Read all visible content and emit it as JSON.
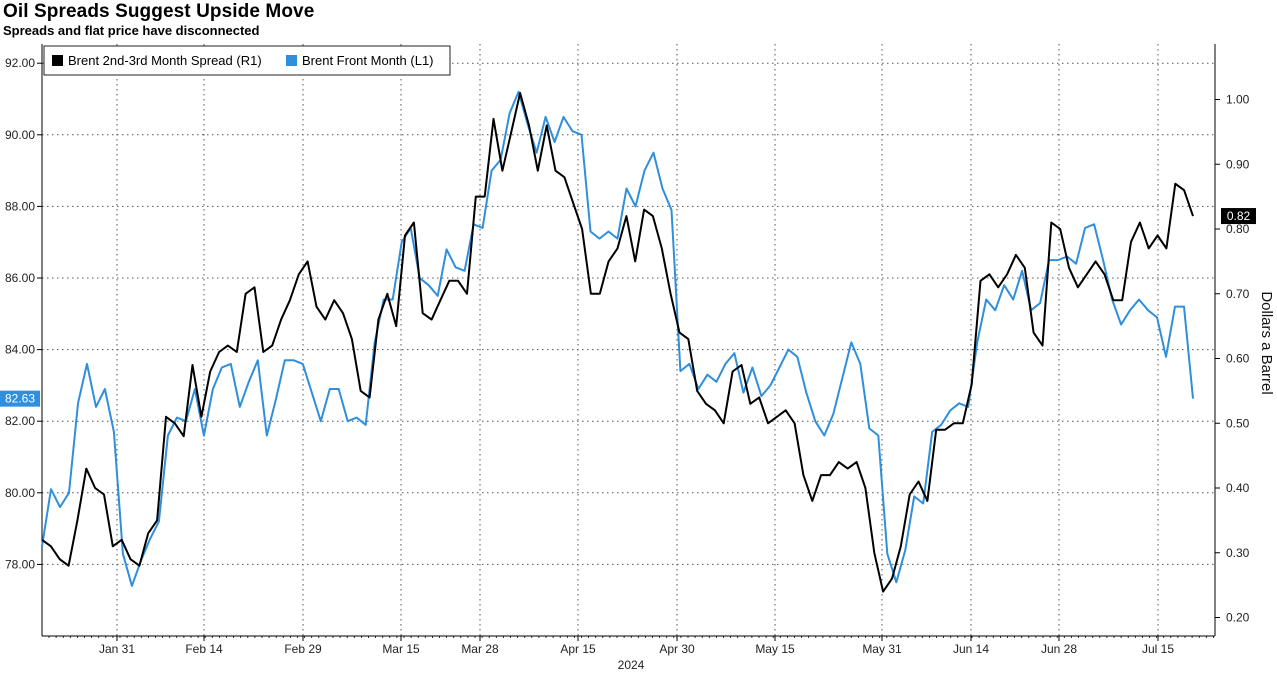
{
  "chart_data": {
    "type": "line",
    "title": "Oil Spreads Suggest Upside Move",
    "subtitle": "Spreads and flat price have disconnected",
    "x_tick_labels": [
      "Jan 31",
      "Feb 14",
      "Feb 29",
      "Mar 15",
      "Mar 28",
      "Apr 15",
      "Apr 30",
      "May 15",
      "May 31",
      "Jun 14",
      "Jun 28",
      "Jul 15"
    ],
    "x_year_label": "2024",
    "left_axis": {
      "ylim": [
        76.0,
        93.5
      ],
      "tick_labels": [
        "78.00",
        "80.00",
        "82.00",
        "84.00",
        "86.00",
        "88.00",
        "90.00",
        "92.00"
      ]
    },
    "right_axis": {
      "ylim": [
        0.17,
        1.075
      ],
      "tick_labels": [
        "0.20",
        "0.30",
        "0.40",
        "0.50",
        "0.60",
        "0.70",
        "0.80",
        "0.90",
        "1.00"
      ],
      "ylabel": "Dollars a Barrel"
    },
    "grid": true,
    "legend_placement": "top-left",
    "series": [
      {
        "name": "Brent 2nd-3rd Month Spread (R1)",
        "axis": "right",
        "color": "#000000",
        "last_value_label": "0.82",
        "values": [
          0.32,
          0.31,
          0.29,
          0.28,
          0.35,
          0.43,
          0.4,
          0.39,
          0.31,
          0.32,
          0.29,
          0.28,
          0.33,
          0.35,
          0.51,
          0.5,
          0.48,
          0.59,
          0.51,
          0.58,
          0.61,
          0.62,
          0.61,
          0.7,
          0.71,
          0.61,
          0.62,
          0.66,
          0.69,
          0.73,
          0.75,
          0.68,
          0.66,
          0.69,
          0.67,
          0.63,
          0.55,
          0.54,
          0.66,
          0.7,
          0.65,
          0.79,
          0.81,
          0.67,
          0.66,
          0.69,
          0.72,
          0.72,
          0.7,
          0.85,
          0.85,
          0.97,
          0.89,
          0.95,
          1.01,
          0.96,
          0.89,
          0.96,
          0.89,
          0.88,
          0.84,
          0.8,
          0.7,
          0.7,
          0.75,
          0.77,
          0.82,
          0.75,
          0.83,
          0.82,
          0.77,
          0.7,
          0.64,
          0.63,
          0.55,
          0.53,
          0.52,
          0.5,
          0.58,
          0.59,
          0.53,
          0.54,
          0.5,
          0.51,
          0.52,
          0.5,
          0.42,
          0.38,
          0.42,
          0.42,
          0.44,
          0.43,
          0.44,
          0.4,
          0.3,
          0.24,
          0.26,
          0.31,
          0.39,
          0.41,
          0.38,
          0.49,
          0.49,
          0.5,
          0.5,
          0.56,
          0.72,
          0.73,
          0.71,
          0.73,
          0.76,
          0.74,
          0.64,
          0.62,
          0.81,
          0.8,
          0.74,
          0.71,
          0.73,
          0.75,
          0.73,
          0.69,
          0.69,
          0.78,
          0.81,
          0.77,
          0.79,
          0.77,
          0.87,
          0.86,
          0.82
        ]
      },
      {
        "name": "Brent Front Month (L1)",
        "axis": "left",
        "color": "#2f8fdc",
        "last_value_label": "82.63",
        "values": [
          78.5,
          80.1,
          79.6,
          80.0,
          82.5,
          83.6,
          82.4,
          82.9,
          81.7,
          78.3,
          77.4,
          78.1,
          78.7,
          79.2,
          81.6,
          82.1,
          82.0,
          82.9,
          81.6,
          82.9,
          83.5,
          83.6,
          82.4,
          83.1,
          83.7,
          81.6,
          82.6,
          83.7,
          83.7,
          83.6,
          82.8,
          82.0,
          82.9,
          82.9,
          82.0,
          82.1,
          81.9,
          84.2,
          85.4,
          85.4,
          87.0,
          87.4,
          86.0,
          85.8,
          85.5,
          86.8,
          86.3,
          86.2,
          87.5,
          87.4,
          89.0,
          89.3,
          90.6,
          91.2,
          90.3,
          89.5,
          90.5,
          89.8,
          90.5,
          90.1,
          90.0,
          87.3,
          87.1,
          87.3,
          87.1,
          88.5,
          88.0,
          89.0,
          89.5,
          88.5,
          87.9,
          83.4,
          83.6,
          82.9,
          83.3,
          83.1,
          83.6,
          83.9,
          82.8,
          83.5,
          82.7,
          83.0,
          83.5,
          84.0,
          83.8,
          82.8,
          82.0,
          81.6,
          82.2,
          83.2,
          84.2,
          83.6,
          81.8,
          81.6,
          78.3,
          77.5,
          78.4,
          79.9,
          79.7,
          81.7,
          81.9,
          82.3,
          82.5,
          82.4,
          84.2,
          85.4,
          85.1,
          85.8,
          85.4,
          86.2,
          85.1,
          85.3,
          86.5,
          86.5,
          86.6,
          86.4,
          87.4,
          87.5,
          86.5,
          85.4,
          84.7,
          85.1,
          85.4,
          85.1,
          84.9,
          83.8,
          85.2,
          85.2,
          82.63
        ]
      }
    ]
  }
}
